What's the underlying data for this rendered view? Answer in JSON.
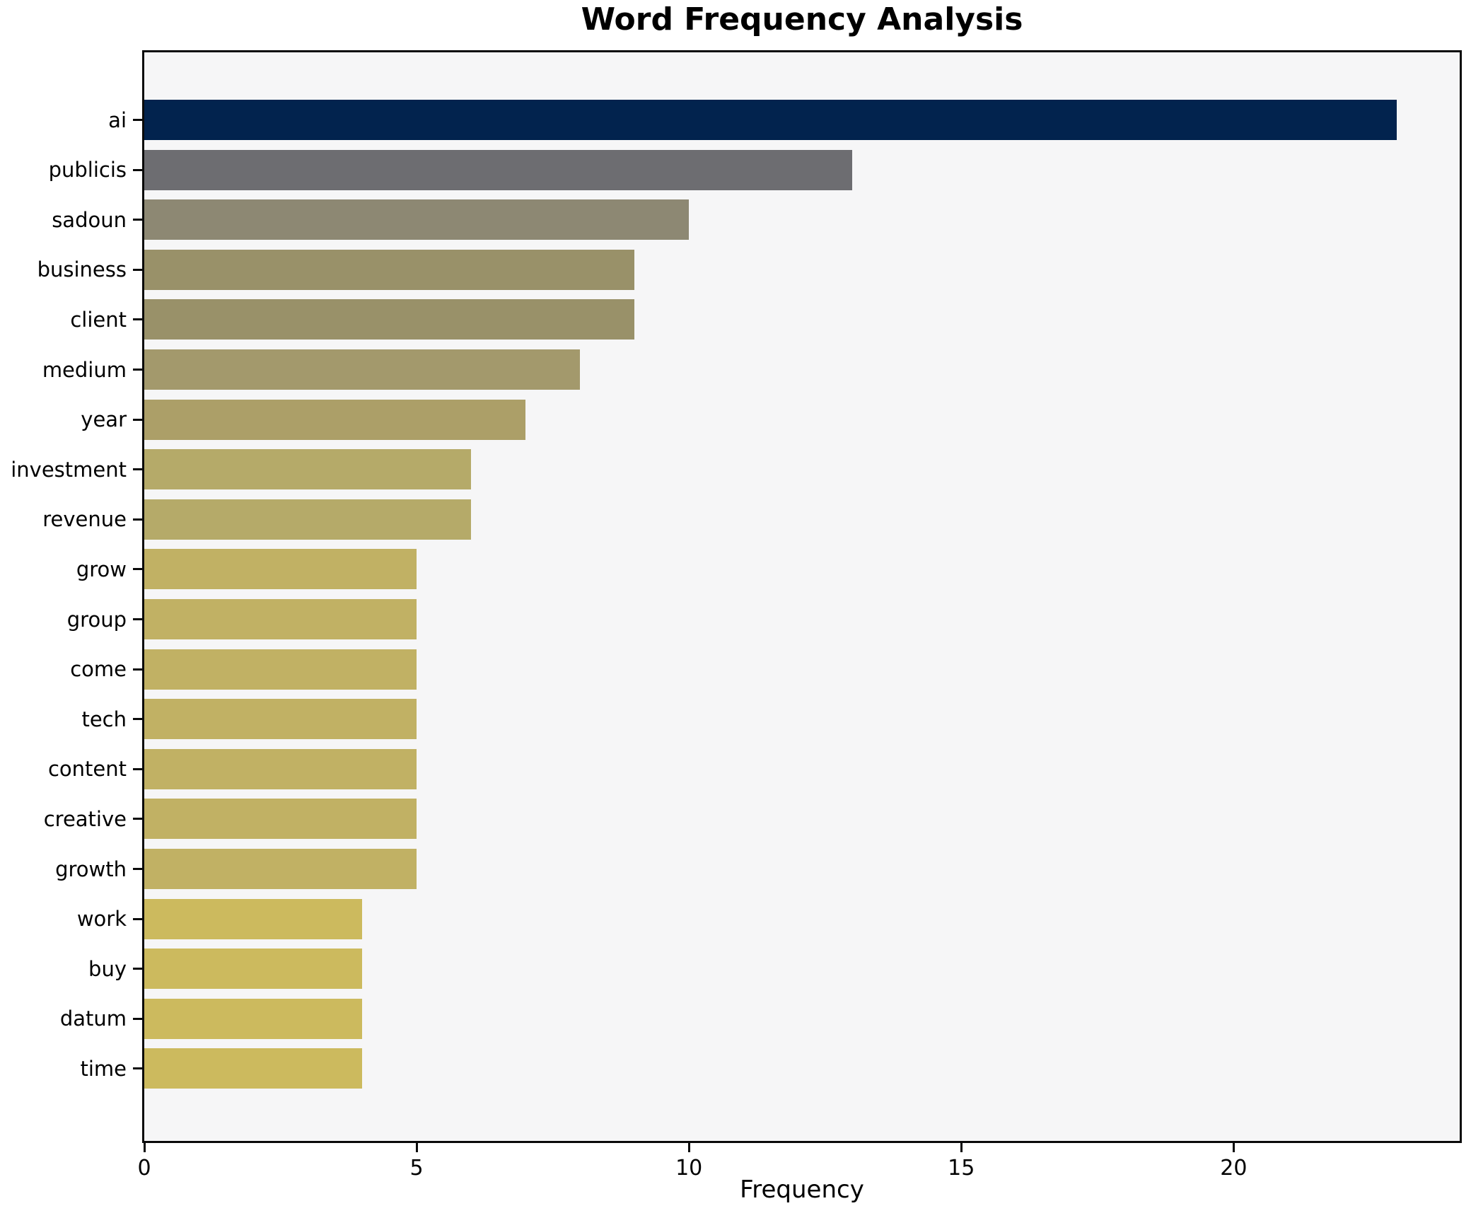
{
  "title": "Word Frequency Analysis",
  "chart_data": {
    "type": "bar",
    "orientation": "horizontal",
    "title": "Word Frequency Analysis",
    "xlabel": "Frequency",
    "ylabel": "",
    "categories": [
      "ai",
      "publicis",
      "sadoun",
      "business",
      "client",
      "medium",
      "year",
      "investment",
      "revenue",
      "grow",
      "group",
      "come",
      "tech",
      "content",
      "creative",
      "growth",
      "work",
      "buy",
      "datum",
      "time"
    ],
    "values": [
      23,
      13,
      10,
      9,
      9,
      8,
      7,
      6,
      6,
      5,
      5,
      5,
      5,
      5,
      5,
      5,
      4,
      4,
      4,
      4
    ],
    "bar_colors": [
      "#02234e",
      "#6d6d71",
      "#8d8873",
      "#999169",
      "#999169",
      "#a3996c",
      "#ac9f68",
      "#b5aa69",
      "#b5aa69",
      "#c1b164",
      "#c1b164",
      "#c1b164",
      "#c1b164",
      "#c1b164",
      "#c1b164",
      "#c1b164",
      "#ccba5e",
      "#ccba5e",
      "#ccba5e",
      "#ccba5e"
    ],
    "xlim": [
      0,
      24.15
    ],
    "xticks": [
      0,
      5,
      10,
      15,
      20
    ],
    "grid": false,
    "legend": null,
    "plot_background": "#f6f6f7",
    "axis_color": "#0a0a0a"
  }
}
